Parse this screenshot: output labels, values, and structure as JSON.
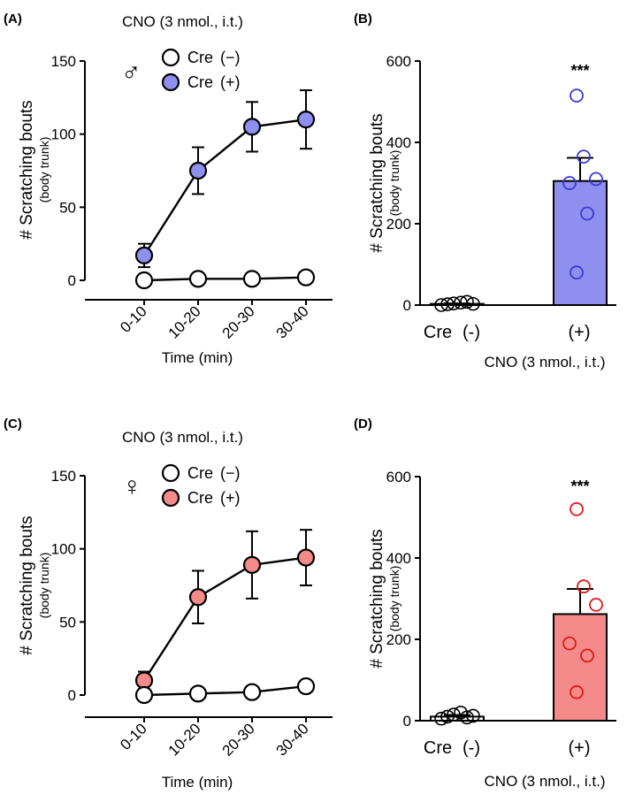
{
  "colors": {
    "male": "#3a3ad6",
    "male_fill": "#8f8ff0",
    "female": "#e01a1a",
    "female_fill": "#f48a8a",
    "neg": "#000000"
  },
  "chart_data": [
    {
      "id": "A",
      "panel_label": "(A)",
      "type": "line",
      "sex_symbol": "♂",
      "condition": "CNO (3 nmol., i.t.)",
      "ylabel": "# Scratching bouts",
      "ylabel_sub": "(body trunk)",
      "xlabel": "Time (min)",
      "categories": [
        "0-10",
        "10-20",
        "20-30",
        "30-40"
      ],
      "ylim": [
        0,
        150
      ],
      "yticks": [
        "0",
        "50",
        "100",
        "150"
      ],
      "series": [
        {
          "name": "Cre (+)",
          "legend_name": "Cre",
          "legend_tag": "(+)",
          "values": [
            17,
            75,
            105,
            110
          ],
          "sem": [
            8,
            16,
            17,
            20
          ]
        },
        {
          "name": "Cre (−)",
          "legend_name": "Cre",
          "legend_tag": "(−)",
          "values": [
            0,
            1,
            1,
            2
          ],
          "sem": [
            0.5,
            0.5,
            0.5,
            0.5
          ]
        }
      ]
    },
    {
      "id": "B",
      "panel_label": "(B)",
      "type": "bar",
      "ylabel": "# Scratching bouts",
      "ylabel_sub": "(body trunk)",
      "xlabel": "CNO (3 nmol., i.t.)",
      "categories": [
        "Cre",
        "(+)"
      ],
      "category_tag": "(-)",
      "significance": "***",
      "ylim": [
        0,
        600
      ],
      "yticks": [
        "0",
        "200",
        "400",
        "600"
      ],
      "values": [
        3,
        305
      ],
      "sem": [
        1,
        57
      ],
      "points": [
        [
          0,
          2,
          4,
          6,
          8,
          3
        ],
        [
          515,
          365,
          310,
          300,
          225,
          80
        ]
      ]
    },
    {
      "id": "C",
      "panel_label": "(C)",
      "type": "line",
      "sex_symbol": "♀",
      "condition": "CNO (3 nmol., i.t.)",
      "ylabel": "# Scratching bouts",
      "ylabel_sub": "(body trunk)",
      "xlabel": "Time (min)",
      "categories": [
        "0-10",
        "10-20",
        "20-30",
        "30-40"
      ],
      "ylim": [
        0,
        150
      ],
      "yticks": [
        "0",
        "50",
        "100",
        "150"
      ],
      "series": [
        {
          "name": "Cre (+)",
          "legend_name": "Cre",
          "legend_tag": "(+)",
          "values": [
            10,
            67,
            89,
            94
          ],
          "sem": [
            6,
            18,
            23,
            19
          ]
        },
        {
          "name": "Cre (−)",
          "legend_name": "Cre",
          "legend_tag": "(−)",
          "values": [
            0,
            1,
            2,
            6
          ],
          "sem": [
            0.5,
            0.5,
            0.5,
            0.5
          ]
        }
      ]
    },
    {
      "id": "D",
      "panel_label": "(D)",
      "type": "bar",
      "ylabel": "# Scratching bouts",
      "ylabel_sub": "(body trunk)",
      "xlabel": "CNO (3 nmol., i.t.)",
      "categories": [
        "Cre",
        "(+)"
      ],
      "category_tag": "(-)",
      "significance": "***",
      "ylim": [
        0,
        600
      ],
      "yticks": [
        "0",
        "200",
        "400",
        "600"
      ],
      "values": [
        10,
        262
      ],
      "sem": [
        4,
        62
      ],
      "points": [
        [
          5,
          10,
          15,
          20,
          8,
          12
        ],
        [
          520,
          330,
          285,
          190,
          160,
          70
        ]
      ]
    }
  ]
}
